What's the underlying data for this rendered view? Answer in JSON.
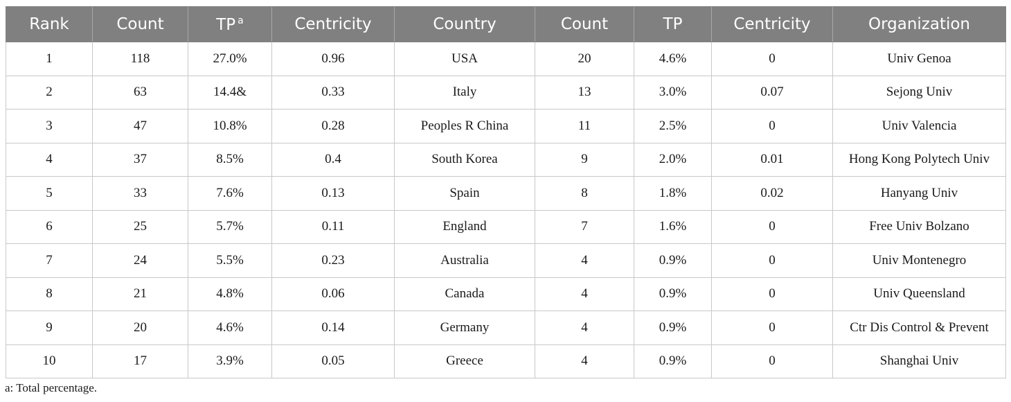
{
  "table": {
    "headers": [
      {
        "label": "Rank",
        "sup": ""
      },
      {
        "label": "Count",
        "sup": ""
      },
      {
        "label": "TP",
        "sup": "a"
      },
      {
        "label": "Centricity",
        "sup": ""
      },
      {
        "label": "Country",
        "sup": ""
      },
      {
        "label": "Count",
        "sup": ""
      },
      {
        "label": "TP",
        "sup": ""
      },
      {
        "label": "Centricity",
        "sup": ""
      },
      {
        "label": "Organization",
        "sup": ""
      }
    ],
    "rows": [
      [
        "1",
        "118",
        "27.0%",
        "0.96",
        "USA",
        "20",
        "4.6%",
        "0",
        "Univ Genoa"
      ],
      [
        "2",
        "63",
        "14.4&",
        "0.33",
        "Italy",
        "13",
        "3.0%",
        "0.07",
        "Sejong Univ"
      ],
      [
        "3",
        "47",
        "10.8%",
        "0.28",
        "Peoples R China",
        "11",
        "2.5%",
        "0",
        "Univ Valencia"
      ],
      [
        "4",
        "37",
        "8.5%",
        "0.4",
        "South Korea",
        "9",
        "2.0%",
        "0.01",
        "Hong Kong Polytech Univ"
      ],
      [
        "5",
        "33",
        "7.6%",
        "0.13",
        "Spain",
        "8",
        "1.8%",
        "0.02",
        "Hanyang Univ"
      ],
      [
        "6",
        "25",
        "5.7%",
        "0.11",
        "England",
        "7",
        "1.6%",
        "0",
        "Free Univ Bolzano"
      ],
      [
        "7",
        "24",
        "5.5%",
        "0.23",
        "Australia",
        "4",
        "0.9%",
        "0",
        "Univ Montenegro"
      ],
      [
        "8",
        "21",
        "4.8%",
        "0.06",
        "Canada",
        "4",
        "0.9%",
        "0",
        "Univ Queensland"
      ],
      [
        "9",
        "20",
        "4.6%",
        "0.14",
        "Germany",
        "4",
        "0.9%",
        "0",
        "Ctr Dis Control & Prevent"
      ],
      [
        "10",
        "17",
        "3.9%",
        "0.05",
        "Greece",
        "4",
        "0.9%",
        "0",
        "Shanghai Univ"
      ]
    ]
  },
  "footnote": "a: Total percentage.",
  "colors": {
    "header_bg": "#808080",
    "header_text": "#ffffff",
    "grid": "#c8c8c8"
  }
}
